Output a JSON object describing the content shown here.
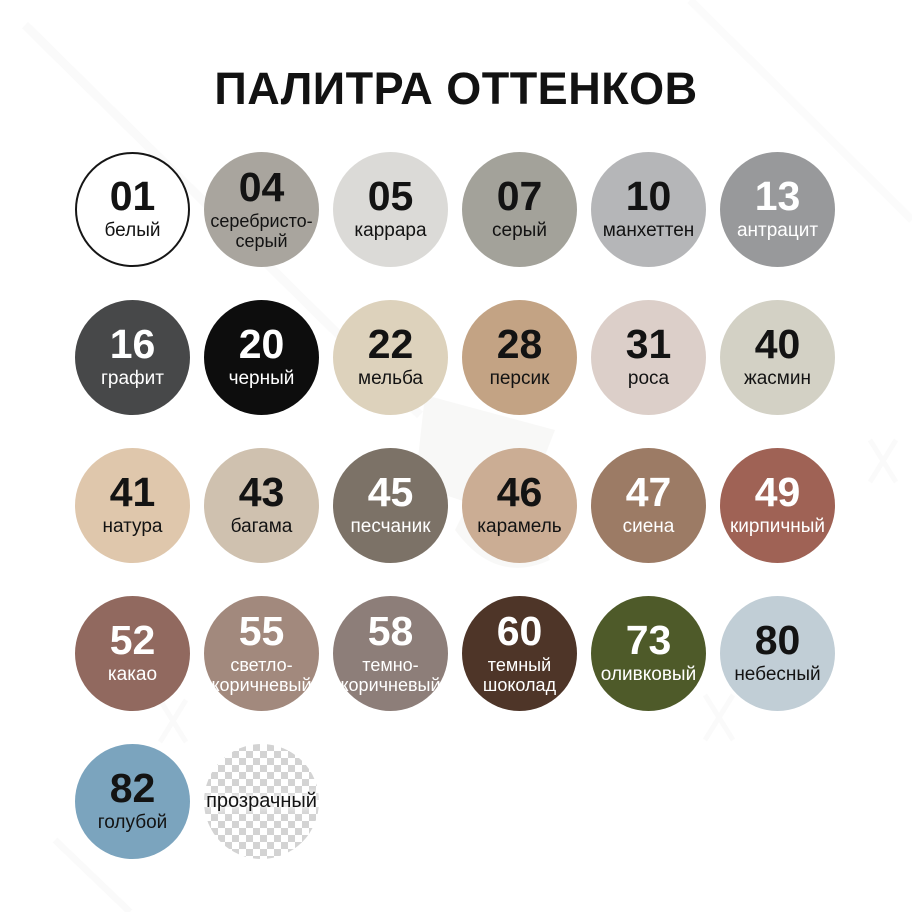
{
  "title": "ПАЛИТРА ОТТЕНКОВ",
  "palette": {
    "outline_color": "#161616",
    "text_dark": "#131313",
    "text_light": "#ffffff",
    "transparent_pattern": {
      "light": "#ffffff",
      "dark": "#d3d3d3"
    },
    "shades": [
      {
        "code": "01",
        "name": "белый",
        "color": "#ffffff",
        "text": "dark",
        "outlined": true
      },
      {
        "code": "04",
        "name": "серебристо-серый",
        "name_lines": [
          "серебристо-",
          "серый"
        ],
        "color": "#a9a59e",
        "text": "dark"
      },
      {
        "code": "05",
        "name": "каррара",
        "color": "#dbdad7",
        "text": "dark"
      },
      {
        "code": "07",
        "name": "серый",
        "color": "#a3a29a",
        "text": "dark"
      },
      {
        "code": "10",
        "name": "манхеттен",
        "color": "#b5b6b8",
        "text": "dark"
      },
      {
        "code": "13",
        "name": "антрацит",
        "color": "#98999b",
        "text": "light"
      },
      {
        "code": "16",
        "name": "графит",
        "color": "#474849",
        "text": "light"
      },
      {
        "code": "20",
        "name": "черный",
        "color": "#0d0d0d",
        "text": "light"
      },
      {
        "code": "22",
        "name": "мельба",
        "color": "#ddd2bc",
        "text": "dark"
      },
      {
        "code": "28",
        "name": "персик",
        "color": "#c3a384",
        "text": "dark"
      },
      {
        "code": "31",
        "name": "роса",
        "color": "#dccfc9",
        "text": "dark"
      },
      {
        "code": "40",
        "name": "жасмин",
        "color": "#d3d1c5",
        "text": "dark"
      },
      {
        "code": "41",
        "name": "натура",
        "color": "#dfc7ac",
        "text": "dark"
      },
      {
        "code": "43",
        "name": "багама",
        "color": "#cfc1af",
        "text": "dark"
      },
      {
        "code": "45",
        "name": "песчаник",
        "color": "#7c7267",
        "text": "light"
      },
      {
        "code": "46",
        "name": "карамель",
        "color": "#cbad94",
        "text": "dark"
      },
      {
        "code": "47",
        "name": "сиена",
        "color": "#9c7b65",
        "text": "light"
      },
      {
        "code": "49",
        "name": "кирпичный",
        "color": "#9f6255",
        "text": "light"
      },
      {
        "code": "52",
        "name": "какао",
        "color": "#91695f",
        "text": "light"
      },
      {
        "code": "55",
        "name": "светло-коричневый",
        "name_lines": [
          "светло-",
          "коричневый"
        ],
        "color": "#a2897d",
        "text": "light"
      },
      {
        "code": "58",
        "name": "темно-коричневый",
        "name_lines": [
          "темно-",
          "коричневый"
        ],
        "color": "#8d7e79",
        "text": "light"
      },
      {
        "code": "60",
        "name": "темный шоколад",
        "name_lines": [
          "темный",
          "шоколад"
        ],
        "color": "#4e3528",
        "text": "light"
      },
      {
        "code": "73",
        "name": "оливковый",
        "color": "#4e5a29",
        "text": "light"
      },
      {
        "code": "80",
        "name": "небесный",
        "color": "#c1ced6",
        "text": "dark"
      },
      {
        "code": "82",
        "name": "голубой",
        "color": "#7ba4be",
        "text": "dark"
      },
      {
        "code": "",
        "name": "прозрачный",
        "transparent": true,
        "text": "dark"
      }
    ]
  }
}
